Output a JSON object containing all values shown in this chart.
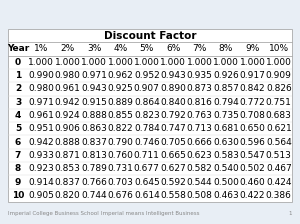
{
  "title": "Discount Factor",
  "col_headers": [
    "Year",
    "1%",
    "2%",
    "3%",
    "4%",
    "5%",
    "6%",
    "7%",
    "8%",
    "9%",
    "10%"
  ],
  "rows": [
    [
      0,
      1.0,
      1.0,
      1.0,
      1.0,
      1.0,
      1.0,
      1.0,
      1.0,
      1.0,
      1.0
    ],
    [
      1,
      0.99,
      0.98,
      0.971,
      0.962,
      0.952,
      0.943,
      0.935,
      0.926,
      0.917,
      0.909
    ],
    [
      2,
      0.98,
      0.961,
      0.943,
      0.925,
      0.907,
      0.89,
      0.873,
      0.857,
      0.842,
      0.826
    ],
    [
      3,
      0.971,
      0.942,
      0.915,
      0.889,
      0.864,
      0.84,
      0.816,
      0.794,
      0.772,
      0.751
    ],
    [
      4,
      0.961,
      0.924,
      0.888,
      0.855,
      0.823,
      0.792,
      0.763,
      0.735,
      0.708,
      0.683
    ],
    [
      5,
      0.951,
      0.906,
      0.863,
      0.822,
      0.784,
      0.747,
      0.713,
      0.681,
      0.65,
      0.621
    ],
    [
      6,
      0.942,
      0.888,
      0.837,
      0.79,
      0.746,
      0.705,
      0.666,
      0.63,
      0.596,
      0.564
    ],
    [
      7,
      0.933,
      0.871,
      0.813,
      0.76,
      0.711,
      0.665,
      0.623,
      0.583,
      0.547,
      0.513
    ],
    [
      8,
      0.923,
      0.853,
      0.789,
      0.731,
      0.677,
      0.627,
      0.582,
      0.54,
      0.502,
      0.467
    ],
    [
      9,
      0.914,
      0.837,
      0.766,
      0.703,
      0.645,
      0.592,
      0.544,
      0.5,
      0.46,
      0.424
    ],
    [
      10,
      0.905,
      0.82,
      0.744,
      0.676,
      0.614,
      0.558,
      0.508,
      0.463,
      0.422,
      0.386
    ]
  ],
  "bg_color": "#e8eef5",
  "table_bg": "#ffffff",
  "font_size": 6.5,
  "title_font_size": 7.5,
  "footer_left": "Imperial College Business School",
  "footer_right": "Imperial means Intelligent Business",
  "footer_page": "1"
}
